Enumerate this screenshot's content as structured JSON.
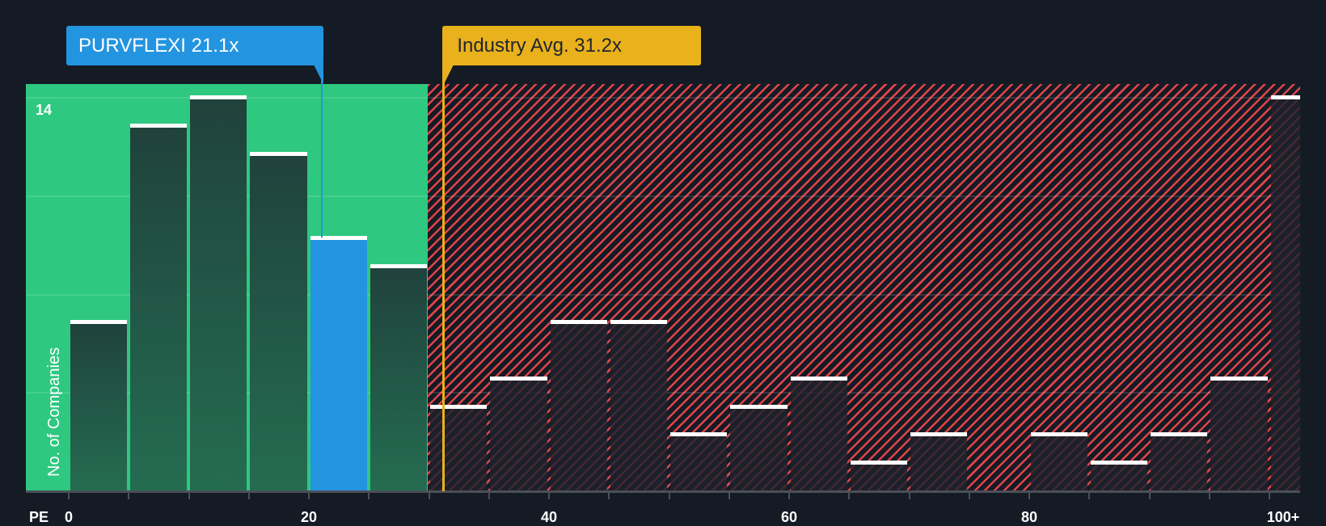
{
  "chart_data": {
    "type": "bar",
    "title": "",
    "xlabel": "PE",
    "ylabel": "No. of Companies",
    "x_ticks": [
      "0",
      "20",
      "40",
      "60",
      "80",
      "100+"
    ],
    "y_ticks_labeled": [
      "14"
    ],
    "ylim": [
      0,
      14
    ],
    "grid": true,
    "bin_width": 5,
    "categories": [
      "0-5",
      "5-10",
      "10-15",
      "15-20",
      "20-25",
      "25-30",
      "30-35",
      "35-40",
      "40-45",
      "45-50",
      "50-55",
      "55-60",
      "60-65",
      "65-70",
      "70-75",
      "75-80",
      "80-85",
      "85-90",
      "90-95",
      "95-100",
      "100+"
    ],
    "values": [
      6,
      13,
      14,
      12,
      9,
      8,
      3,
      4,
      6,
      6,
      2,
      3,
      4,
      1,
      2,
      0,
      2,
      1,
      2,
      4,
      14
    ],
    "highlight_bin": "20-25",
    "company": {
      "name": "PURVFLEXI",
      "pe": 21.1,
      "label": "PURVFLEXI 21.1x"
    },
    "industry_avg": {
      "pe": 31.2,
      "label": "Industry Avg. 31.2x"
    },
    "fair_zone_max_pe": 31.2,
    "annotations": [
      "PURVFLEXI 21.1x",
      "Industry Avg. 31.2x"
    ]
  },
  "labels": {
    "x_title": "PE",
    "y_title": "No. of Companies",
    "y_max": "14",
    "company_callout": "PURVFLEXI 21.1x",
    "industry_callout": "Industry Avg. 31.2x",
    "x_ticks": [
      {
        "label": "0",
        "value": 0
      },
      {
        "label": "20",
        "value": 20
      },
      {
        "label": "40",
        "value": 40
      },
      {
        "label": "60",
        "value": 60
      },
      {
        "label": "80",
        "value": 80
      },
      {
        "label": "100+",
        "value": 100
      }
    ]
  },
  "colors": {
    "background": "#151b24",
    "undervalued_zone": "#2ec880",
    "overvalued_hatch": "#e0444a",
    "company": "#2394e0",
    "industry": "#e9b11b"
  }
}
